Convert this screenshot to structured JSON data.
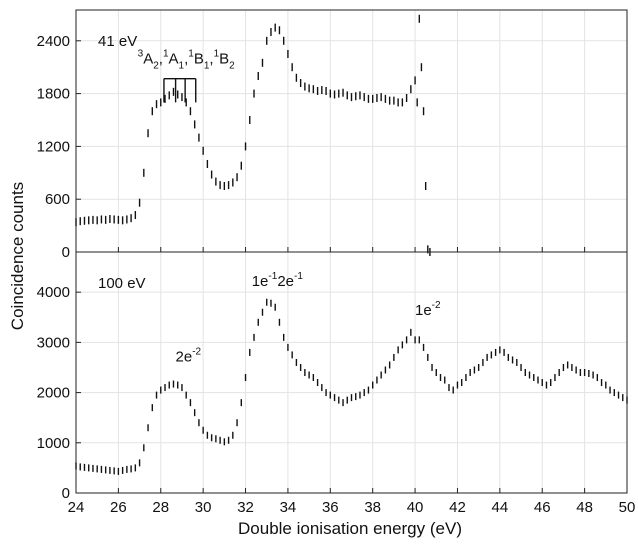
{
  "chart_data": {
    "type": "scatter",
    "xlabel": "Double ionisation energy (eV)",
    "ylabel": "Coincidence counts",
    "x_ticks": [
      24,
      26,
      28,
      30,
      32,
      34,
      36,
      38,
      40,
      42,
      44,
      46,
      48,
      50
    ],
    "grid": true,
    "panels": [
      {
        "label": "41 eV",
        "xlim": [
          24,
          50
        ],
        "ylim": [
          0,
          2750
        ],
        "y_ticks": [
          0,
          600,
          1200,
          1800,
          2400
        ],
        "annotations": [
          {
            "parts": [
              [
                "3",
                "A",
                "2"
              ],
              [
                "1",
                "A",
                "1"
              ],
              [
                "1",
                "B",
                "1"
              ],
              [
                "1",
                "B",
                "2"
              ]
            ],
            "x": 29.2,
            "y": 2140
          }
        ],
        "brackets": [
          {
            "x": [
              28.15,
              28.7,
              29.15,
              29.65
            ],
            "y_top": 1970,
            "y_bottom": 1700
          }
        ],
        "x": [
          24.0,
          24.2,
          24.4,
          24.6,
          24.8,
          25.0,
          25.2,
          25.4,
          25.6,
          25.8,
          26.0,
          26.2,
          26.4,
          26.6,
          26.8,
          27.0,
          27.2,
          27.4,
          27.6,
          27.8,
          28.0,
          28.2,
          28.4,
          28.6,
          28.8,
          29.0,
          29.2,
          29.4,
          29.6,
          29.8,
          30.0,
          30.2,
          30.4,
          30.6,
          30.8,
          31.0,
          31.2,
          31.4,
          31.6,
          31.8,
          32.0,
          32.2,
          32.4,
          32.6,
          32.8,
          33.0,
          33.2,
          33.4,
          33.6,
          33.8,
          34.0,
          34.2,
          34.4,
          34.6,
          34.8,
          35.0,
          35.2,
          35.4,
          35.6,
          35.8,
          36.0,
          36.2,
          36.4,
          36.6,
          36.8,
          37.0,
          37.2,
          37.4,
          37.6,
          37.8,
          38.0,
          38.2,
          38.4,
          38.6,
          38.8,
          39.0,
          39.2,
          39.4,
          39.6,
          39.8,
          40.0,
          40.1,
          40.2,
          40.3,
          40.4,
          40.5,
          40.6,
          40.7
        ],
        "y": [
          340,
          350,
          355,
          360,
          365,
          360,
          370,
          365,
          375,
          370,
          365,
          360,
          370,
          385,
          420,
          560,
          900,
          1350,
          1600,
          1680,
          1700,
          1740,
          1780,
          1820,
          1790,
          1760,
          1700,
          1600,
          1450,
          1300,
          1150,
          1000,
          880,
          800,
          760,
          750,
          760,
          790,
          850,
          980,
          1200,
          1500,
          1800,
          2000,
          2150,
          2400,
          2500,
          2550,
          2520,
          2400,
          2250,
          2100,
          1980,
          1920,
          1880,
          1860,
          1850,
          1830,
          1840,
          1830,
          1800,
          1790,
          1800,
          1810,
          1780,
          1760,
          1770,
          1780,
          1760,
          1740,
          1740,
          1750,
          1760,
          1740,
          1720,
          1720,
          1700,
          1700,
          1750,
          1850,
          1950,
          1700,
          2650,
          2100,
          1600,
          750,
          30,
          0
        ]
      },
      {
        "label": "100 eV",
        "xlim": [
          24,
          50
        ],
        "ylim": [
          0,
          4800
        ],
        "y_ticks": [
          0,
          1000,
          2000,
          3000,
          4000
        ],
        "annotations": [
          {
            "parts": [
              [
                "",
                "2e",
                "-2"
              ]
            ],
            "x": 29.3,
            "y": 2620
          },
          {
            "parts": [
              [
                "",
                "1e",
                "-1"
              ],
              [
                "",
                "2e",
                "-1"
              ]
            ],
            "x": 33.5,
            "y": 4120
          },
          {
            "parts": [
              [
                "",
                "1e",
                "-2"
              ]
            ],
            "x": 40.6,
            "y": 3550
          }
        ],
        "x": [
          24.0,
          24.2,
          24.4,
          24.6,
          24.8,
          25.0,
          25.2,
          25.4,
          25.6,
          25.8,
          26.0,
          26.2,
          26.4,
          26.6,
          26.8,
          27.0,
          27.2,
          27.4,
          27.6,
          27.8,
          28.0,
          28.2,
          28.4,
          28.6,
          28.8,
          29.0,
          29.2,
          29.4,
          29.6,
          29.8,
          30.0,
          30.2,
          30.4,
          30.6,
          30.8,
          31.0,
          31.2,
          31.4,
          31.6,
          31.8,
          32.0,
          32.2,
          32.4,
          32.6,
          32.8,
          33.0,
          33.2,
          33.4,
          33.6,
          33.8,
          34.0,
          34.2,
          34.4,
          34.6,
          34.8,
          35.0,
          35.2,
          35.4,
          35.6,
          35.8,
          36.0,
          36.2,
          36.4,
          36.6,
          36.8,
          37.0,
          37.2,
          37.4,
          37.6,
          37.8,
          38.0,
          38.2,
          38.4,
          38.6,
          38.8,
          39.0,
          39.2,
          39.4,
          39.6,
          39.8,
          40.0,
          40.2,
          40.4,
          40.6,
          40.8,
          41.0,
          41.2,
          41.4,
          41.6,
          41.8,
          42.0,
          42.2,
          42.4,
          42.6,
          42.8,
          43.0,
          43.2,
          43.4,
          43.6,
          43.8,
          44.0,
          44.2,
          44.4,
          44.6,
          44.8,
          45.0,
          45.2,
          45.4,
          45.6,
          45.8,
          46.0,
          46.2,
          46.4,
          46.6,
          46.8,
          47.0,
          47.2,
          47.4,
          47.6,
          47.8,
          48.0,
          48.2,
          48.4,
          48.6,
          48.8,
          49.0,
          49.2,
          49.4,
          49.6,
          49.8,
          50.0
        ],
        "y": [
          540,
          520,
          510,
          500,
          490,
          480,
          470,
          460,
          450,
          440,
          430,
          450,
          470,
          480,
          500,
          600,
          900,
          1300,
          1700,
          1950,
          2050,
          2100,
          2150,
          2170,
          2150,
          2100,
          1950,
          1800,
          1600,
          1400,
          1250,
          1150,
          1100,
          1080,
          1050,
          1020,
          1050,
          1150,
          1400,
          1800,
          2300,
          2800,
          3100,
          3400,
          3600,
          3800,
          3780,
          3700,
          3400,
          3100,
          2900,
          2750,
          2600,
          2500,
          2400,
          2350,
          2300,
          2200,
          2100,
          2000,
          1950,
          1900,
          1850,
          1800,
          1850,
          1900,
          1920,
          1950,
          2000,
          2050,
          2150,
          2250,
          2350,
          2450,
          2550,
          2700,
          2850,
          2950,
          3050,
          3200,
          3050,
          3050,
          2900,
          2700,
          2500,
          2400,
          2300,
          2250,
          2100,
          2050,
          2150,
          2200,
          2300,
          2400,
          2450,
          2500,
          2600,
          2700,
          2750,
          2800,
          2850,
          2800,
          2700,
          2650,
          2600,
          2500,
          2400,
          2350,
          2300,
          2250,
          2200,
          2150,
          2200,
          2300,
          2400,
          2500,
          2550,
          2500,
          2450,
          2400,
          2400,
          2380,
          2350,
          2300,
          2200,
          2150,
          2050,
          2000,
          1950,
          1900,
          1850
        ]
      }
    ]
  }
}
